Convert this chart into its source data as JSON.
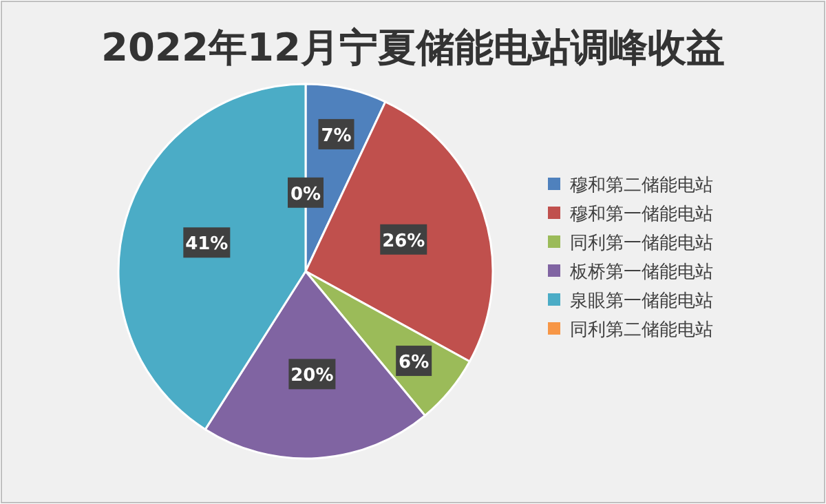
{
  "chart_data": {
    "type": "pie",
    "title": "2022年12月宁夏储能电站调峰收益",
    "categories": [
      "穆和第二储能电站",
      "穆和第一储能电站",
      "同利第一储能电站",
      "板桥第一储能电站",
      "泉眼第一储能电站",
      "同利第二储能电站"
    ],
    "values": [
      7,
      26,
      6,
      20,
      41,
      0
    ],
    "colors": [
      "#4f81bd",
      "#c0504d",
      "#9bbb59",
      "#8064a2",
      "#4bacc6",
      "#f79646"
    ],
    "value_labels": [
      "7%",
      "26%",
      "6%",
      "20%",
      "41%",
      "0%"
    ],
    "legend": "right"
  }
}
